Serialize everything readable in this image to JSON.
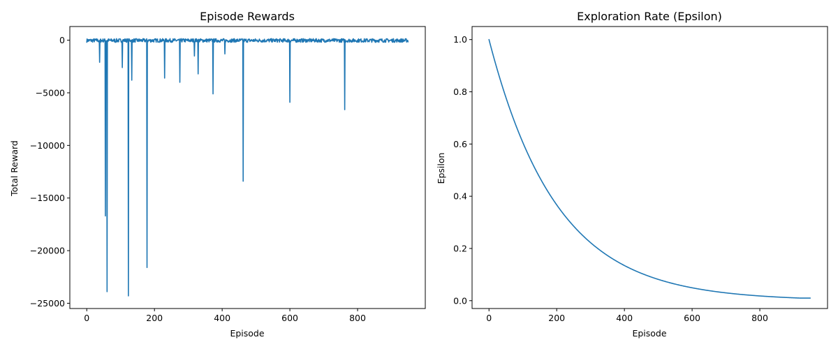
{
  "colors": {
    "series": "#1f77b4",
    "axes": "#000000",
    "background": "#ffffff"
  },
  "chart_data": [
    {
      "type": "line",
      "title": "Episode Rewards",
      "xlabel": "Episode",
      "ylabel": "Total Reward",
      "xlim": [
        -50,
        1000
      ],
      "ylim": [
        -25500,
        1300
      ],
      "xticks": [
        0,
        200,
        400,
        600,
        800
      ],
      "yticks": [
        0,
        -5000,
        -10000,
        -15000,
        -20000,
        -25000
      ],
      "xtick_labels": [
        "0",
        "200",
        "400",
        "600",
        "800"
      ],
      "ytick_labels": [
        "0",
        "−5000",
        "−10000",
        "−15000",
        "−20000",
        "−25000"
      ],
      "grid": false,
      "series": [
        {
          "baseline_range": [
            -200,
            150
          ],
          "n_episodes": 950,
          "drops": [
            {
              "x": 38,
              "y": -2100
            },
            {
              "x": 55,
              "y": -16700
            },
            {
              "x": 60,
              "y": -23900
            },
            {
              "x": 85,
              "y": -200
            },
            {
              "x": 105,
              "y": -2600
            },
            {
              "x": 123,
              "y": -24300
            },
            {
              "x": 133,
              "y": -3800
            },
            {
              "x": 178,
              "y": -21600
            },
            {
              "x": 230,
              "y": -3600
            },
            {
              "x": 275,
              "y": -4000
            },
            {
              "x": 318,
              "y": -1500
            },
            {
              "x": 329,
              "y": -3200
            },
            {
              "x": 373,
              "y": -5100
            },
            {
              "x": 408,
              "y": -1300
            },
            {
              "x": 462,
              "y": -13400
            },
            {
              "x": 600,
              "y": -5900
            },
            {
              "x": 762,
              "y": -6600
            }
          ]
        }
      ]
    },
    {
      "type": "line",
      "title": "Exploration Rate (Epsilon)",
      "xlabel": "Episode",
      "ylabel": "Epsilon",
      "xlim": [
        -50,
        1000
      ],
      "ylim": [
        -0.03,
        1.05
      ],
      "xticks": [
        0,
        200,
        400,
        600,
        800
      ],
      "yticks": [
        0.0,
        0.2,
        0.4,
        0.6,
        0.8,
        1.0
      ],
      "xtick_labels": [
        "0",
        "200",
        "400",
        "600",
        "800"
      ],
      "ytick_labels": [
        "0.0",
        "0.2",
        "0.4",
        "0.6",
        "0.8",
        "1.0"
      ],
      "grid": false,
      "series": [
        {
          "decay_per_episode": 0.995,
          "epsilon_min": 0.01,
          "start": 1.0,
          "n_episodes": 950
        }
      ]
    }
  ]
}
